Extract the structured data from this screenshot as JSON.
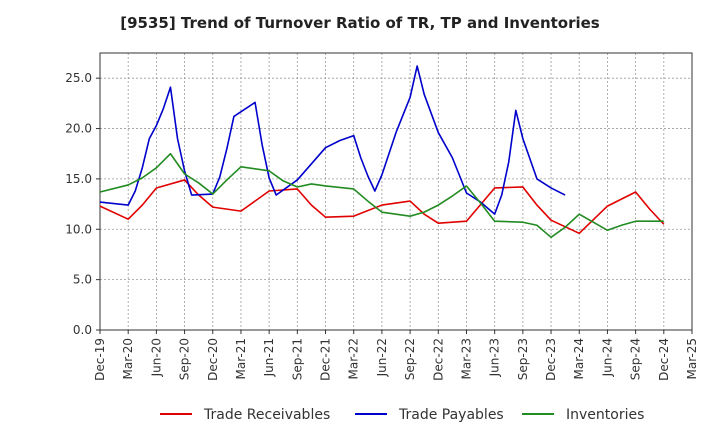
{
  "chart_data": {
    "type": "line",
    "title": "[9535]  Trend of Turnover Ratio of TR, TP and Inventories",
    "x": [
      "Dec-19",
      "Mar-20",
      "Jun-20",
      "Sep-20",
      "Dec-20",
      "Mar-21",
      "Jun-21",
      "Sep-21",
      "Dec-21",
      "Mar-22",
      "Jun-22",
      "Sep-22",
      "Dec-22",
      "Mar-23",
      "Jun-23",
      "Sep-23",
      "Dec-23",
      "Mar-24",
      "Jun-24",
      "Sep-24",
      "Dec-24",
      "Mar-25"
    ],
    "ylim": [
      0,
      27.5
    ],
    "yticks": [
      0.0,
      5.0,
      10.0,
      15.0,
      20.0,
      25.0
    ],
    "ytick_labels": [
      "0.0",
      "5.0",
      "10.0",
      "15.0",
      "20.0",
      "25.0"
    ],
    "grid": true,
    "legend_position": "bottom",
    "colors": {
      "Trade Receivables": "#e00000",
      "Trade Payables": "#0000cc",
      "Inventories": "#228b22"
    },
    "series": [
      {
        "name": "Trade Receivables",
        "points": [
          [
            0,
            12.3
          ],
          [
            1,
            11.0
          ],
          [
            1.5,
            12.4
          ],
          [
            2,
            14.1
          ],
          [
            3,
            14.9
          ],
          [
            3.5,
            13.4
          ],
          [
            4,
            12.2
          ],
          [
            5,
            11.8
          ],
          [
            6,
            13.8
          ],
          [
            7,
            14.0
          ],
          [
            7.5,
            12.4
          ],
          [
            8,
            11.2
          ],
          [
            9,
            11.3
          ],
          [
            10,
            12.4
          ],
          [
            11,
            12.8
          ],
          [
            11.5,
            11.5
          ],
          [
            12,
            10.6
          ],
          [
            13,
            10.8
          ],
          [
            14,
            14.1
          ],
          [
            15,
            14.2
          ],
          [
            15.5,
            12.4
          ],
          [
            16,
            10.9
          ],
          [
            17,
            9.6
          ],
          [
            18,
            12.3
          ],
          [
            19,
            13.7
          ],
          [
            19.5,
            12.0
          ],
          [
            20,
            10.5
          ]
        ]
      },
      {
        "name": "Trade Payables",
        "points": [
          [
            0,
            12.7
          ],
          [
            1,
            12.4
          ],
          [
            1.25,
            13.8
          ],
          [
            1.5,
            16.1
          ],
          [
            1.75,
            19.0
          ],
          [
            2,
            20.3
          ],
          [
            2.25,
            22.0
          ],
          [
            2.5,
            24.1
          ],
          [
            2.75,
            19.0
          ],
          [
            3,
            15.8
          ],
          [
            3.25,
            13.4
          ],
          [
            4,
            13.5
          ],
          [
            4.25,
            15.2
          ],
          [
            4.5,
            18.0
          ],
          [
            4.75,
            21.2
          ],
          [
            5.5,
            22.6
          ],
          [
            5.75,
            18.4
          ],
          [
            6,
            15.1
          ],
          [
            6.25,
            13.4
          ],
          [
            7,
            14.9
          ],
          [
            7.5,
            16.5
          ],
          [
            8,
            18.1
          ],
          [
            8.5,
            18.8
          ],
          [
            9,
            19.3
          ],
          [
            9.25,
            17.1
          ],
          [
            9.5,
            15.3
          ],
          [
            9.75,
            13.8
          ],
          [
            10,
            15.4
          ],
          [
            10.5,
            19.6
          ],
          [
            11,
            23.1
          ],
          [
            11.25,
            26.2
          ],
          [
            11.5,
            23.4
          ],
          [
            12,
            19.6
          ],
          [
            12.5,
            17.1
          ],
          [
            13,
            13.6
          ],
          [
            13.5,
            12.7
          ],
          [
            14,
            11.5
          ],
          [
            14.25,
            13.4
          ],
          [
            14.5,
            16.7
          ],
          [
            14.75,
            21.8
          ],
          [
            15,
            19.0
          ],
          [
            15.5,
            15.0
          ],
          [
            16,
            14.1
          ],
          [
            16.5,
            13.4
          ]
        ]
      },
      {
        "name": "Inventories",
        "points": [
          [
            0,
            13.7
          ],
          [
            1,
            14.4
          ],
          [
            1.5,
            15.1
          ],
          [
            2,
            16.1
          ],
          [
            2.5,
            17.5
          ],
          [
            3,
            15.5
          ],
          [
            3.5,
            14.6
          ],
          [
            4,
            13.5
          ],
          [
            4.5,
            14.9
          ],
          [
            5,
            16.2
          ],
          [
            6,
            15.8
          ],
          [
            6.5,
            14.8
          ],
          [
            7,
            14.2
          ],
          [
            7.5,
            14.5
          ],
          [
            8,
            14.3
          ],
          [
            9,
            14.0
          ],
          [
            9.5,
            12.8
          ],
          [
            10,
            11.7
          ],
          [
            11,
            11.3
          ],
          [
            11.5,
            11.7
          ],
          [
            12,
            12.4
          ],
          [
            12.5,
            13.3
          ],
          [
            13,
            14.3
          ],
          [
            13.5,
            12.6
          ],
          [
            14,
            10.8
          ],
          [
            15,
            10.7
          ],
          [
            15.5,
            10.4
          ],
          [
            16,
            9.2
          ],
          [
            16.5,
            10.2
          ],
          [
            17,
            11.5
          ],
          [
            17.5,
            10.7
          ],
          [
            18,
            9.9
          ],
          [
            18.5,
            10.4
          ],
          [
            19,
            10.8
          ],
          [
            20,
            10.8
          ]
        ]
      }
    ]
  }
}
